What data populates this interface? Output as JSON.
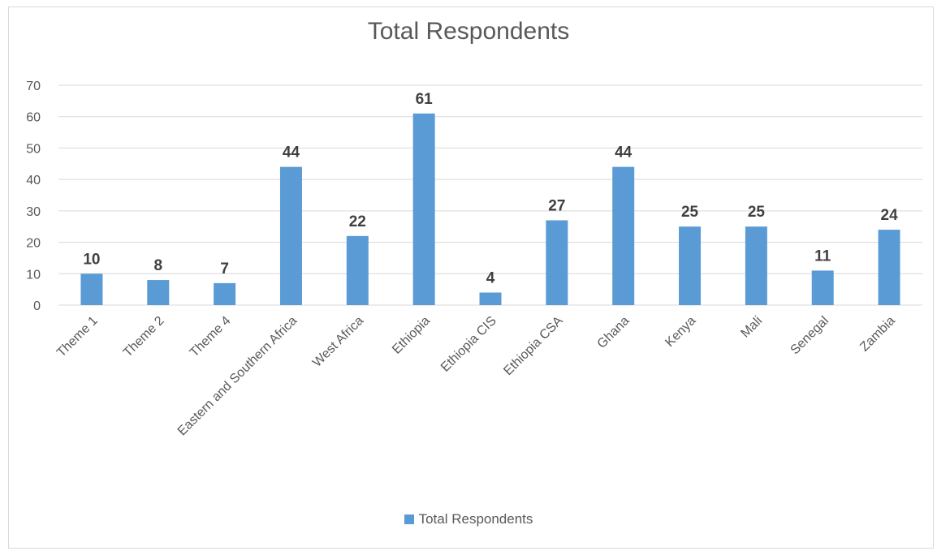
{
  "chart_data": {
    "type": "bar",
    "title": "Total Respondents",
    "categories": [
      "Theme 1",
      "Theme 2",
      "Theme 4",
      "Eastern and Southern Africa",
      "West Africa",
      "Ethiopia",
      "Ethiopia CIS",
      "Ethiopia CSA",
      "Ghana",
      "Kenya",
      "Mali",
      "Senegal",
      "Zambia"
    ],
    "series": [
      {
        "name": "Total Respondents",
        "values": [
          10,
          8,
          7,
          44,
          22,
          61,
          4,
          27,
          44,
          25,
          25,
          11,
          24
        ]
      }
    ],
    "ylim": [
      0,
      70
    ],
    "yticks": [
      0,
      10,
      20,
      30,
      40,
      50,
      60,
      70
    ],
    "grid": true,
    "legend_position": "bottom",
    "colors": {
      "bar": "#5b9bd5",
      "grid": "#d9d9d9",
      "text": "#595959",
      "label": "#404040"
    }
  }
}
